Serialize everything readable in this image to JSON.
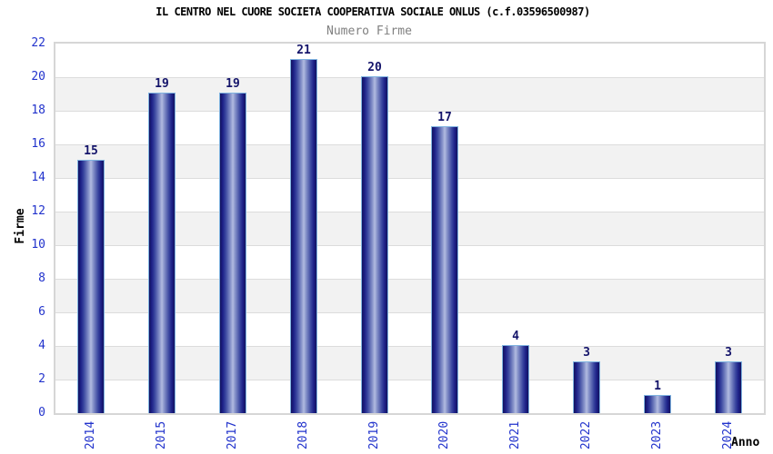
{
  "header": {
    "title": "IL CENTRO NEL CUORE SOCIETA COOPERATIVA SOCIALE ONLUS (c.f.03596500987)",
    "subtitle": "Numero Firme"
  },
  "chart_data": {
    "type": "bar",
    "title": "IL CENTRO NEL CUORE SOCIETA COOPERATIVA SOCIALE ONLUS (c.f.03596500987)",
    "subtitle": "Numero Firme",
    "categories": [
      "2014",
      "2015",
      "2017",
      "2018",
      "2019",
      "2020",
      "2021",
      "2022",
      "2023",
      "2024"
    ],
    "values": [
      15,
      19,
      19,
      21,
      20,
      17,
      4,
      3,
      1,
      3
    ],
    "xlabel": "Anno",
    "ylabel": "Firme",
    "ylim": [
      0,
      22
    ],
    "ytick_step": 2,
    "yticks": [
      0,
      2,
      4,
      6,
      8,
      10,
      12,
      14,
      16,
      18,
      20,
      22
    ],
    "grid": "horizontal-bands",
    "legend": "none",
    "colors": {
      "bar_dark": "#13135e",
      "bar_mid": "#3a47a0",
      "bar_highlight": "#b2bbe0",
      "bar_border": "#7fb3e0",
      "value_label": "#14146a",
      "tick_label": "#2233cc",
      "axis_title": "#000000",
      "subtitle": "#808080",
      "band_gray": "#f2f2f2",
      "band_white": "#ffffff",
      "gridline": "#dcdcdc",
      "plot_border": "#d6d6d6",
      "background": "#ffffff"
    }
  }
}
